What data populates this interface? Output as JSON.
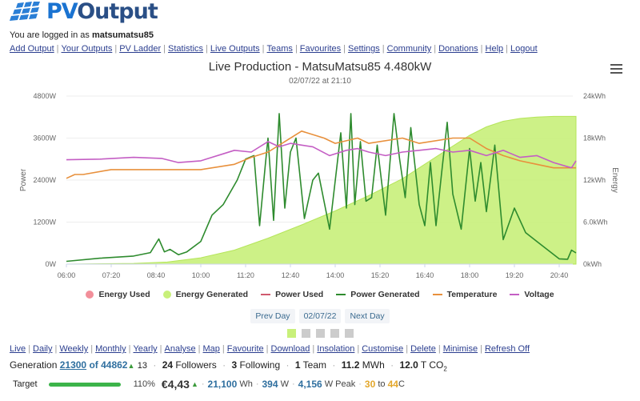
{
  "logo": {
    "part1": "PV",
    "part2": "Output"
  },
  "login": {
    "prefix": "You are logged in as",
    "username": "matsumatsu85"
  },
  "nav": [
    "Add Output",
    "Your Outputs",
    "PV Ladder",
    "Statistics",
    "Live Outputs",
    "Teams",
    "Favourites",
    "Settings",
    "Community",
    "Donations",
    "Help",
    "Logout"
  ],
  "chart": {
    "title": "Live Production - MatsuMatsu85 4.480kW",
    "subtitle": "02/07/22 at 21:10",
    "menu_icon": "hamburger-icon"
  },
  "chart_data": {
    "type": "line",
    "title": "Live Production - MatsuMatsu85 4.480kW",
    "subtitle": "02/07/22 at 21:10",
    "x_ticks": [
      "06:00",
      "07:20",
      "08:40",
      "10:00",
      "11:20",
      "12:40",
      "14:00",
      "15:20",
      "16:40",
      "18:00",
      "19:20",
      "20:40"
    ],
    "xrange_minutes": [
      360,
      1270
    ],
    "ylabel_left": "Power",
    "ylabel_right": "Energy",
    "y_left_ticks": [
      "0W",
      "1200W",
      "2400W",
      "3600W",
      "4800W"
    ],
    "y_left_range": [
      0,
      4800
    ],
    "y_right_ticks": [
      "0kWh",
      "6.0kWh",
      "12kWh",
      "18kWh",
      "24kWh"
    ],
    "y_right_range": [
      0,
      24
    ],
    "grid": true,
    "legend_position": "bottom",
    "legend": [
      {
        "name": "Energy Used",
        "color": "#f28f9a",
        "marker": "dot"
      },
      {
        "name": "Energy Generated",
        "color": "#c8f07a",
        "marker": "dot"
      },
      {
        "name": "Power Used",
        "color": "#d05a6e",
        "marker": "line"
      },
      {
        "name": "Power Generated",
        "color": "#2e8b2e",
        "marker": "line"
      },
      {
        "name": "Temperature",
        "color": "#e8903c",
        "marker": "line"
      },
      {
        "name": "Voltage",
        "color": "#c45ec4",
        "marker": "line"
      }
    ],
    "series": [
      {
        "name": "Energy Generated",
        "axis": "right",
        "unit": "kWh",
        "x_minutes": [
          360,
          480,
          540,
          600,
          660,
          720,
          780,
          840,
          900,
          960,
          1020,
          1080,
          1110,
          1140,
          1170,
          1200,
          1230,
          1260,
          1270
        ],
        "values": [
          0,
          0.1,
          0.3,
          0.9,
          2.0,
          3.7,
          5.6,
          7.6,
          9.8,
          12.2,
          15.3,
          18.4,
          19.6,
          20.4,
          20.8,
          21.0,
          21.1,
          21.1,
          21.1
        ]
      },
      {
        "name": "Power Generated",
        "axis": "left",
        "unit": "W",
        "x_minutes": [
          360,
          420,
          480,
          510,
          525,
          535,
          545,
          560,
          575,
          600,
          620,
          640,
          665,
          680,
          695,
          705,
          715,
          720,
          730,
          740,
          750,
          760,
          770,
          785,
          800,
          810,
          830,
          850,
          860,
          868,
          875,
          885,
          895,
          905,
          915,
          930,
          945,
          955,
          965,
          975,
          990,
          1000,
          1010,
          1020,
          1030,
          1040,
          1050,
          1065,
          1080,
          1090,
          1100,
          1110,
          1125,
          1140,
          1160,
          1180,
          1200,
          1220,
          1240,
          1255,
          1262,
          1270
        ],
        "values": [
          80,
          170,
          230,
          330,
          720,
          350,
          420,
          270,
          350,
          650,
          1400,
          1700,
          2400,
          3000,
          3100,
          1100,
          2800,
          3600,
          1250,
          4300,
          1600,
          3200,
          3600,
          1300,
          2400,
          2600,
          1000,
          3750,
          1600,
          4300,
          1700,
          3500,
          1800,
          1900,
          3400,
          1400,
          4300,
          3000,
          1900,
          3900,
          1700,
          1100,
          2900,
          1100,
          2600,
          4050,
          2000,
          1000,
          3300,
          1800,
          2900,
          1500,
          3400,
          700,
          1600,
          900,
          650,
          400,
          150,
          140,
          400,
          320
        ]
      },
      {
        "name": "Temperature",
        "axis": "left",
        "unit": "C",
        "x_minutes": [
          360,
          375,
          390,
          440,
          480,
          600,
          660,
          690,
          720,
          750,
          780,
          820,
          840,
          880,
          900,
          960,
          990,
          1050,
          1080,
          1110,
          1140,
          1170,
          1200,
          1230,
          1270
        ],
        "values": [
          2450,
          2560,
          2560,
          2700,
          2700,
          2700,
          2850,
          3050,
          3200,
          3500,
          3800,
          3600,
          3450,
          3600,
          3450,
          3600,
          3450,
          3600,
          3600,
          3300,
          3100,
          2950,
          2850,
          2750,
          2750
        ]
      },
      {
        "name": "Voltage",
        "axis": "left",
        "unit": "V",
        "x_minutes": [
          360,
          420,
          480,
          530,
          560,
          600,
          640,
          660,
          690,
          720,
          740,
          760,
          780,
          800,
          830,
          860,
          880,
          900,
          930,
          960,
          990,
          1020,
          1050,
          1080,
          1110,
          1140,
          1170,
          1200,
          1230,
          1262,
          1270
        ],
        "values": [
          2980,
          3000,
          3050,
          3020,
          2900,
          2950,
          3150,
          3250,
          3200,
          3500,
          3350,
          3450,
          3400,
          3350,
          3100,
          3250,
          3300,
          3200,
          3100,
          3200,
          3250,
          3300,
          3200,
          3250,
          3100,
          3250,
          3050,
          3100,
          2900,
          2750,
          2950
        ]
      }
    ]
  },
  "legend": [
    "Energy Used",
    "Energy Generated",
    "Power Used",
    "Power Generated",
    "Temperature",
    "Voltage"
  ],
  "daynav": {
    "prev": "Prev Day",
    "date": "02/07/22",
    "next": "Next Day"
  },
  "pager": {
    "count": 5,
    "active": 0
  },
  "subnav": [
    "Live",
    "Daily",
    "Weekly",
    "Monthly",
    "Yearly",
    "Analyse",
    "Map",
    "Favourite",
    "Download",
    "Insolation",
    "Customise",
    "Delete",
    "Minimise",
    "Refresh Off"
  ],
  "stats": {
    "generation_label": "Generation",
    "rank": "21300",
    "of_label": "of",
    "total": "44862",
    "rank_change": "13",
    "followers_count": "24",
    "followers_label": "Followers",
    "following_count": "3",
    "following_label": "Following",
    "team_count": "1",
    "team_label": "Team",
    "energy_value": "11.2",
    "energy_unit": "MWh",
    "co2_value": "12.0",
    "co2_unit": "T CO",
    "co2_sub": "2"
  },
  "target": {
    "label": "Target",
    "percent_text": "110%",
    "percent_value": 110,
    "money": "€4,43",
    "wh_value": "21,100",
    "wh_unit": "Wh",
    "w_value": "394",
    "w_unit": "W",
    "peak_value": "4,156",
    "peak_unit": "W Peak",
    "temp_min": "30",
    "temp_to": "to",
    "temp_max": "44",
    "temp_unit": "C"
  },
  "colors": {
    "energy_generated": "#c8f07a",
    "power_generated": "#2e8b2e",
    "temperature": "#e8903c",
    "voltage": "#c45ec4",
    "link": "#2b3e8f"
  }
}
